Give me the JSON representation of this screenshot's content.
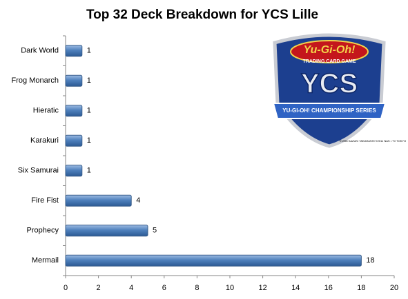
{
  "chart_data": {
    "type": "barh",
    "title": "Top 32 Deck Breakdown for YCS Lille",
    "categories": [
      "Dark World",
      "Frog Monarch",
      "Hieratic",
      "Karakuri",
      "Six Samurai",
      "Fire Fist",
      "Prophecy",
      "Mermail"
    ],
    "values": [
      1,
      1,
      1,
      1,
      1,
      4,
      5,
      18
    ],
    "color": "#4f81bd",
    "xlim": [
      0,
      20
    ],
    "xticks": [
      0,
      2,
      4,
      6,
      8,
      10,
      12,
      14,
      16,
      18,
      20
    ],
    "grid": false,
    "logo": {
      "brand": "Yu-Gi-Oh!",
      "tagline": "TRADING CARD GAME",
      "name": "YCS",
      "banner": "YU-GI-OH! CHAMPIONSHIP SERIES",
      "copyright": "©1996 KAZUKI TAKAHASHI ©2011 NAS • TV TOKYO"
    }
  }
}
